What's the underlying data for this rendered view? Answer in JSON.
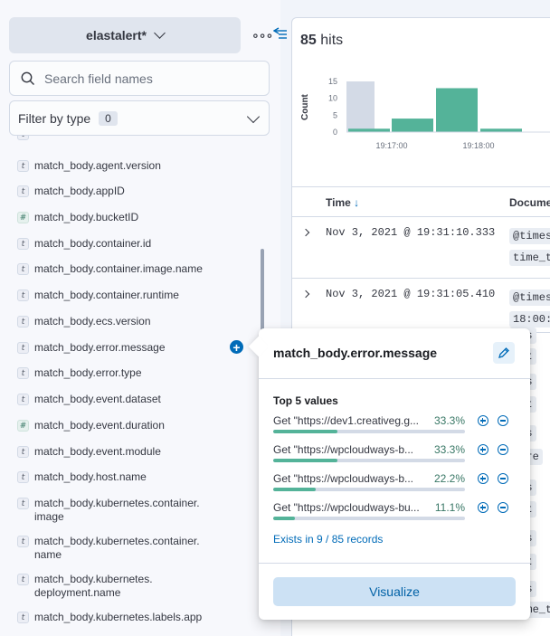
{
  "sidebar": {
    "index_pattern": "elastalert*",
    "search_placeholder": "Search field names",
    "filter_label": "Filter by type",
    "filter_count": "0",
    "fields": [
      {
        "type": "t",
        "name": "match_body.agent.version"
      },
      {
        "type": "t",
        "name": "match_body.appID"
      },
      {
        "type": "#",
        "name": "match_body.bucketID"
      },
      {
        "type": "t",
        "name": "match_body.container.id"
      },
      {
        "type": "t",
        "name": "match_body.container.image.name"
      },
      {
        "type": "t",
        "name": "match_body.container.runtime"
      },
      {
        "type": "t",
        "name": "match_body.ecs.version"
      },
      {
        "type": "t",
        "name": "match_body.error.message"
      },
      {
        "type": "t",
        "name": "match_body.error.type"
      },
      {
        "type": "t",
        "name": "match_body.event.dataset"
      },
      {
        "type": "#",
        "name": "match_body.event.duration"
      },
      {
        "type": "t",
        "name": "match_body.event.module"
      },
      {
        "type": "t",
        "name": "match_body.host.name"
      },
      {
        "type": "t",
        "name": "match_body.kubernetes.container.\nimage"
      },
      {
        "type": "t",
        "name": "match_body.kubernetes.container.\nname"
      },
      {
        "type": "t",
        "name": "match_body.kubernetes.\ndeployment.name"
      },
      {
        "type": "t",
        "name": "match_body.kubernetes.labels.app"
      }
    ]
  },
  "main": {
    "hits_count": "85",
    "hits_label": "hits",
    "columns": {
      "time": "Time",
      "document": "Docume"
    },
    "rows": [
      {
        "time": "Nov 3, 2021 @ 19:31:10.333",
        "doc1": "@times",
        "doc2": "time_t"
      },
      {
        "time": "Nov 3, 2021 @ 19:31:05.410",
        "doc1": "@times",
        "doc2": "18:00:0"
      }
    ],
    "peek_pills": [
      "mes",
      "e_t",
      "mes",
      "e_t",
      "mes",
      "core",
      "mes",
      "e_t",
      "mes",
      "e_t",
      "mes",
      "time_t"
    ]
  },
  "chart_data": {
    "type": "bar",
    "ylabel": "Count",
    "yticks": [
      "15",
      "10",
      "5",
      "0"
    ],
    "xticks": [
      "19:17:00",
      "19:18:00"
    ],
    "ylim": [
      0,
      15
    ],
    "bars": [
      {
        "value": 1,
        "highlight": false
      },
      {
        "value": 4,
        "highlight": false
      },
      {
        "value": 13,
        "highlight": false
      },
      {
        "value": 1,
        "highlight": false
      }
    ],
    "selection_value": 15,
    "color": "#54b399",
    "selection_color": "#d3dae6"
  },
  "popover": {
    "title": "match_body.error.message",
    "top_label": "Top 5 values",
    "values": [
      {
        "text": "Get \"https://dev1.creativeg.g...",
        "pct": "33.3%",
        "fraction": 0.333
      },
      {
        "text": "Get \"https://wpcloudways-b...",
        "pct": "33.3%",
        "fraction": 0.333
      },
      {
        "text": "Get \"https://wpcloudways-b...",
        "pct": "22.2%",
        "fraction": 0.222
      },
      {
        "text": "Get \"https://wpcloudways-bu...",
        "pct": "11.1%",
        "fraction": 0.111
      }
    ],
    "exists": "Exists in 9 / 85 records",
    "visualize": "Visualize"
  }
}
